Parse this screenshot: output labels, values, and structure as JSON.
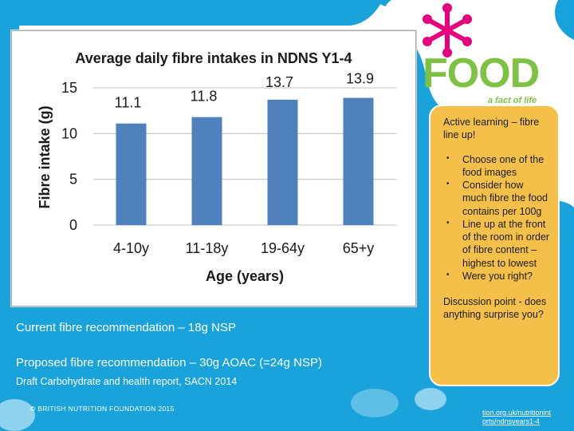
{
  "slide": {
    "recommendation_current": "Current fibre recommendation – 18g NSP",
    "recommendation_proposed": "Proposed fibre recommendation – 30g AOAC (=24g NSP)",
    "draft_report": "Draft Carbohydrate and health report, SACN 2014",
    "copyright": "© BRITISH NUTRITION FOUNDATION 2015",
    "link_line1": "tion.org.uk/nutritionint",
    "link_line2": "orts/ndnsyears1-4"
  },
  "logo": {
    "word": "FOOD",
    "tagline": "a fact of life"
  },
  "callout": {
    "title": "Active learning – fibre line up!",
    "items": [
      "Choose one of the food images",
      "Consider how much fibre the food contains per 100g",
      "Line up at the front of the room in order of fibre content – highest to lowest",
      "Were you right?"
    ],
    "discussion": "Discussion point - does anything surprise you?"
  },
  "colors": {
    "background_blue": "#1aa3db",
    "bar_blue": "#4f81bd",
    "callout_orange": "#f5c04a",
    "logo_green": "#7dc242",
    "logo_magenta": "#e5007e"
  },
  "chart_data": {
    "type": "bar",
    "title": "Average daily fibre intakes in NDNS Y1-4",
    "xlabel": "Age (years)",
    "ylabel": "Fibre intake (g)",
    "categories": [
      "4-10y",
      "11-18y",
      "19-64y",
      "65+y"
    ],
    "values": [
      11.1,
      11.8,
      13.7,
      13.9
    ],
    "data_labels": [
      "11.1",
      "11.8",
      "13.7",
      "13.9"
    ],
    "ylim": [
      0,
      15
    ],
    "yticks": [
      "0",
      "5",
      "10",
      "15"
    ],
    "grid": true,
    "color": "#4f81bd"
  }
}
